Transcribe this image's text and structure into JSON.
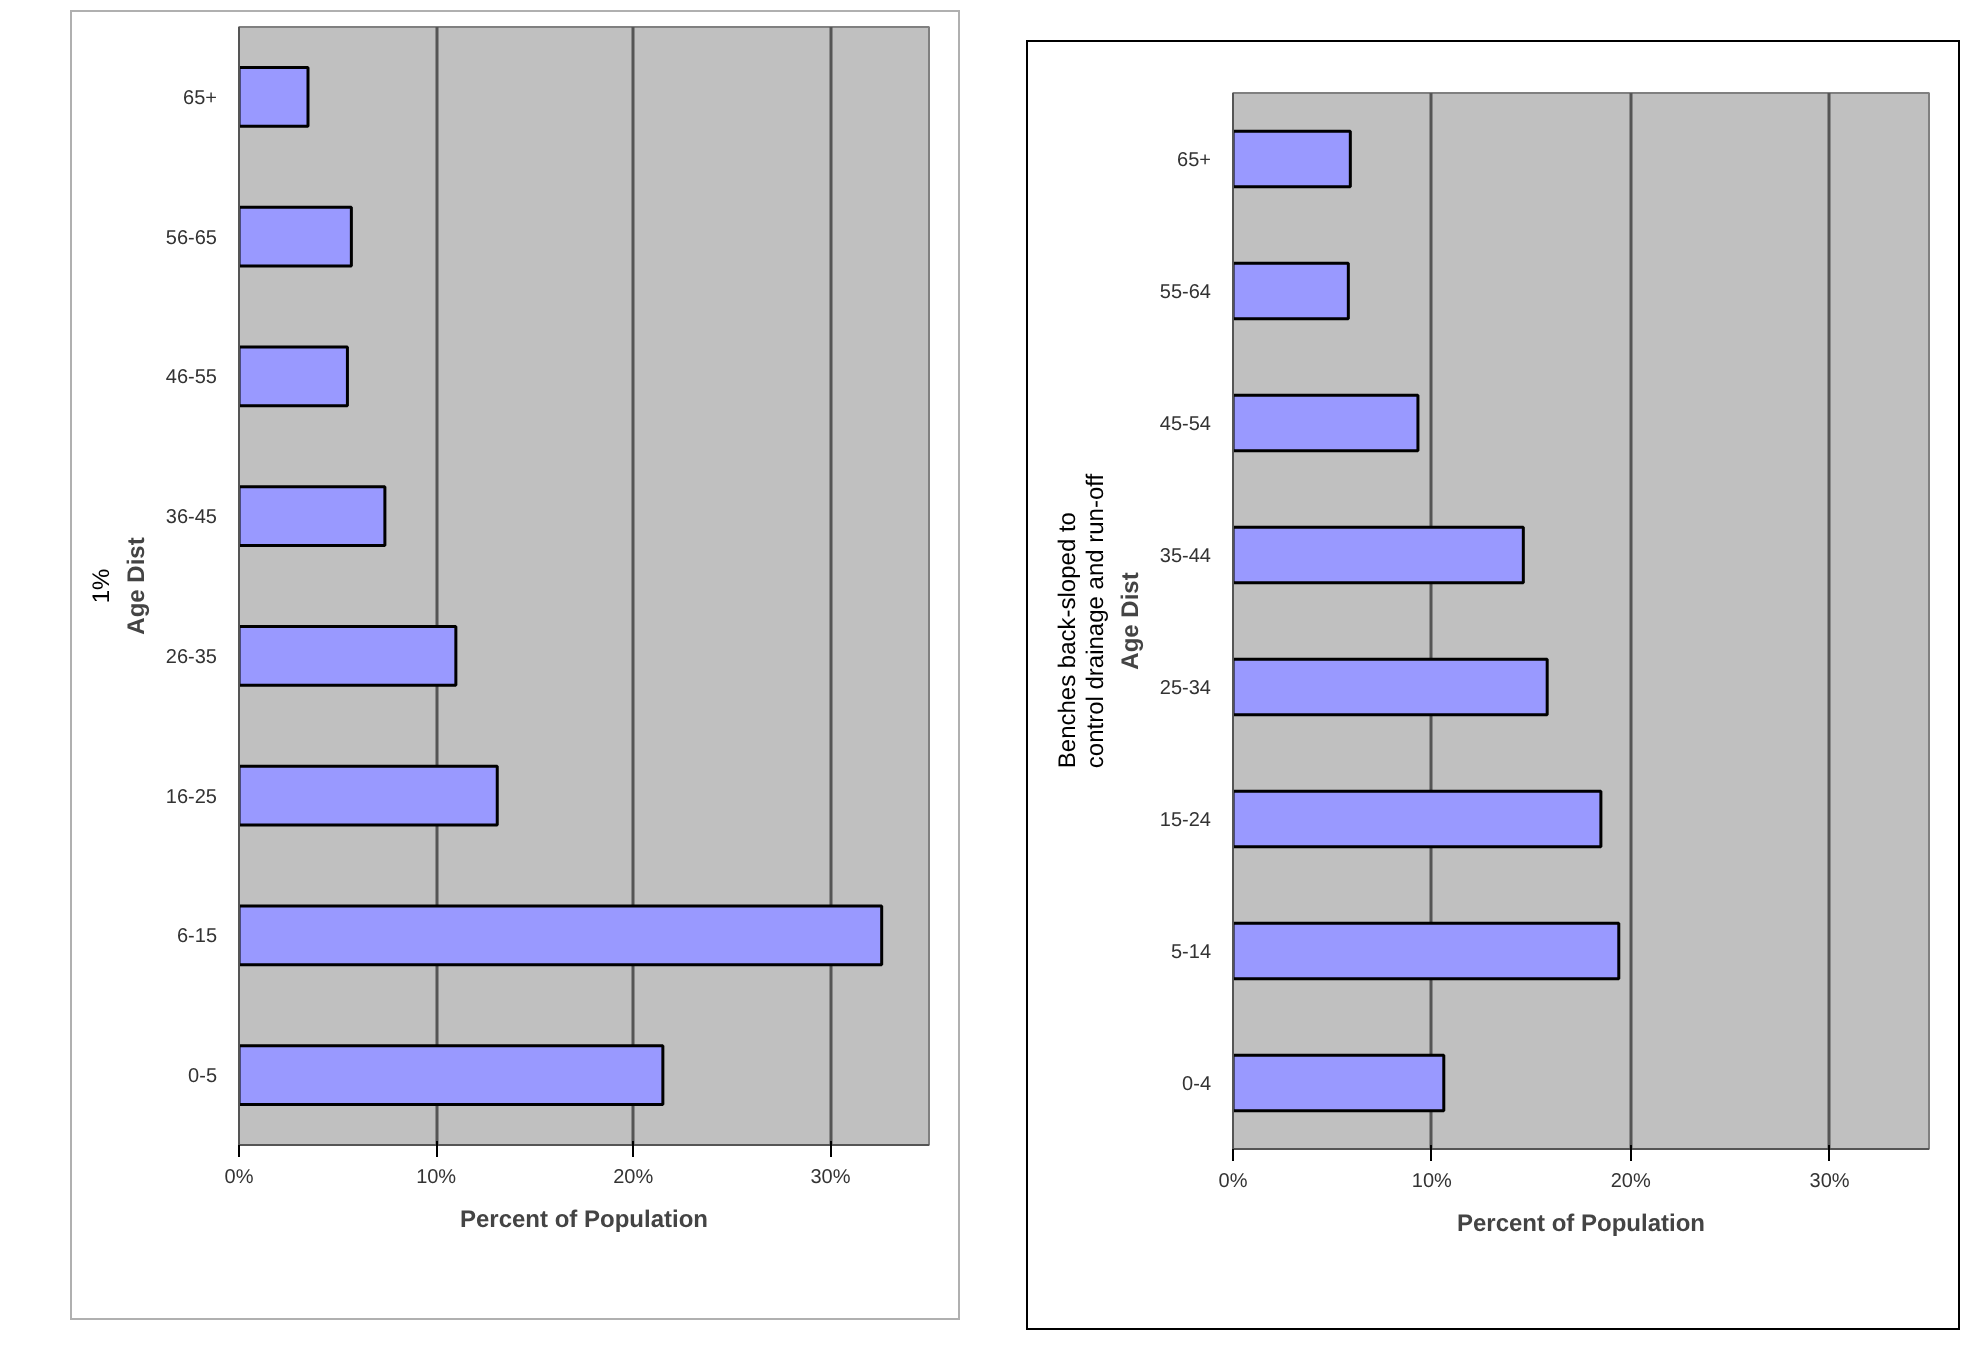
{
  "chart_data": [
    {
      "type": "bar",
      "orientation": "horizontal",
      "categories": [
        "65+",
        "56-65",
        "46-55",
        "36-45",
        "26-35",
        "16-25",
        "6-15",
        "0-5"
      ],
      "values": [
        3.5,
        5.7,
        5.5,
        7.4,
        11.0,
        13.1,
        32.6,
        21.5
      ],
      "color": "#9999ff",
      "xlim": [
        0,
        35
      ],
      "xticks": [
        {
          "value": 0,
          "label": "0%"
        },
        {
          "value": 10,
          "label": "10%"
        },
        {
          "value": 20,
          "label": "20%"
        },
        {
          "value": 30,
          "label": "30%"
        }
      ],
      "xlabel": "Percent of Population",
      "ylabel": "Age Dist",
      "grid": "x",
      "annotations": [
        "1%"
      ]
    },
    {
      "type": "bar",
      "orientation": "horizontal",
      "categories": [
        "65+",
        "55-64",
        "45-54",
        "35-44",
        "25-34",
        "15-24",
        "5-14",
        "0-4"
      ],
      "values": [
        5.9,
        5.8,
        9.3,
        14.6,
        15.8,
        18.5,
        19.4,
        10.6
      ],
      "color": "#9999ff",
      "xlim": [
        0,
        35
      ],
      "xticks": [
        {
          "value": 0,
          "label": "0%"
        },
        {
          "value": 10,
          "label": "10%"
        },
        {
          "value": 20,
          "label": "20%"
        },
        {
          "value": 30,
          "label": "30%"
        }
      ],
      "xlabel": "Percent of Population",
      "ylabel": "Age Dist",
      "grid": "x",
      "annotations": [
        "Benches back-sloped to\ncontrol drainage and run-off"
      ]
    }
  ]
}
